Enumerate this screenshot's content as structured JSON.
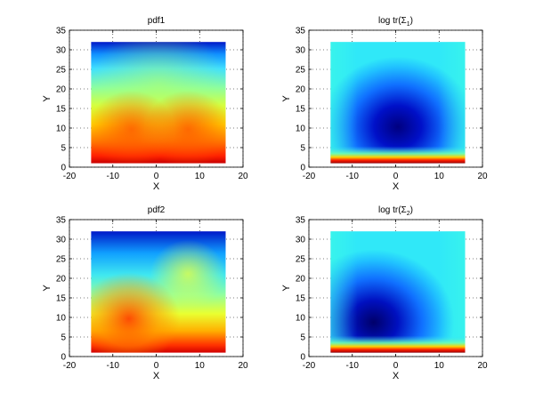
{
  "chart_data": [
    {
      "type": "heatmap",
      "title": "pdf1",
      "xlabel": "X",
      "ylabel": "Y",
      "xlim": [
        -20,
        20
      ],
      "ylim": [
        0,
        35
      ],
      "xticks": [
        "-20",
        "-10",
        "0",
        "10",
        "20"
      ],
      "yticks": [
        "0",
        "5",
        "10",
        "15",
        "20",
        "25",
        "30",
        "35"
      ],
      "data_extent": {
        "x": [
          -15,
          16
        ],
        "y": [
          1,
          32
        ]
      },
      "grid": true,
      "colormap": "jet"
    },
    {
      "type": "heatmap",
      "title": "log tr(Σ1)",
      "title_main": "log tr(Σ",
      "title_sub": "1",
      "title_end": ")",
      "xlabel": "X",
      "ylabel": "Y",
      "xlim": [
        -20,
        20
      ],
      "ylim": [
        0,
        35
      ],
      "xticks": [
        "-20",
        "-10",
        "0",
        "10",
        "20"
      ],
      "yticks": [
        "0",
        "5",
        "10",
        "15",
        "20",
        "25",
        "30",
        "35"
      ],
      "data_extent": {
        "x": [
          -15,
          16
        ],
        "y": [
          1,
          32
        ]
      },
      "grid": true,
      "colormap": "jet"
    },
    {
      "type": "heatmap",
      "title": "pdf2",
      "xlabel": "X",
      "ylabel": "Y",
      "xlim": [
        -20,
        20
      ],
      "ylim": [
        0,
        35
      ],
      "xticks": [
        "-20",
        "-10",
        "0",
        "10",
        "20"
      ],
      "yticks": [
        "0",
        "5",
        "10",
        "15",
        "20",
        "25",
        "30",
        "35"
      ],
      "data_extent": {
        "x": [
          -15,
          16
        ],
        "y": [
          1,
          32
        ]
      },
      "grid": true,
      "colormap": "jet"
    },
    {
      "type": "heatmap",
      "title": "log tr(Σ2)",
      "title_main": "log tr(Σ",
      "title_sub": "2",
      "title_end": ")",
      "xlabel": "X",
      "ylabel": "Y",
      "xlim": [
        -20,
        20
      ],
      "ylim": [
        0,
        35
      ],
      "xticks": [
        "-20",
        "-10",
        "0",
        "10",
        "20"
      ],
      "yticks": [
        "0",
        "5",
        "10",
        "15",
        "20",
        "25",
        "30",
        "35"
      ],
      "data_extent": {
        "x": [
          -15,
          16
        ],
        "y": [
          1,
          32
        ]
      },
      "grid": true,
      "colormap": "jet"
    }
  ]
}
